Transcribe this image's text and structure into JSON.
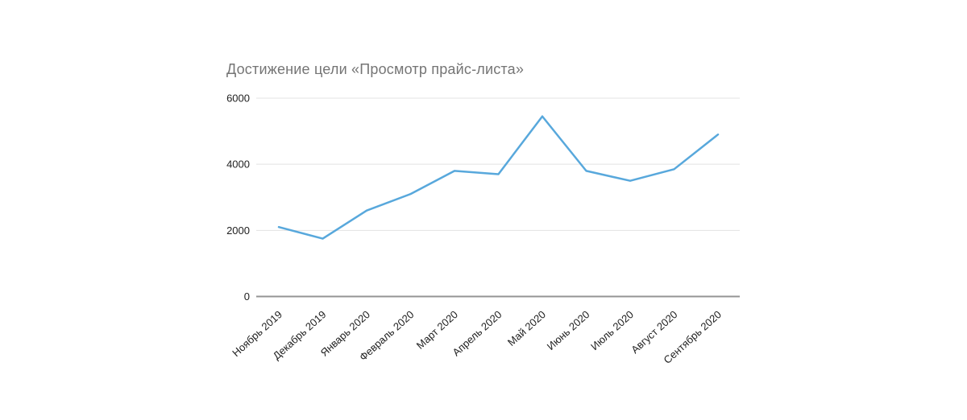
{
  "chart_data": {
    "type": "line",
    "title": "Достижение цели «Просмотр прайс-листа»",
    "categories": [
      "Ноябрь 2019",
      "Декабрь 2019",
      "Январь 2020",
      "Февраль 2020",
      "Март 2020",
      "Апрель 2020",
      "Май 2020",
      "Июнь 2020",
      "Июль 2020",
      "Август 2020",
      "Сентябрь 2020"
    ],
    "values": [
      2100,
      1750,
      2600,
      3100,
      3800,
      3700,
      5450,
      3800,
      3500,
      3850,
      4900
    ],
    "xlabel": "",
    "ylabel": "",
    "ylim": [
      0,
      6000
    ],
    "y_ticks": [
      0,
      2000,
      4000,
      6000
    ],
    "grid": true,
    "legend": "none",
    "colors": {
      "line": "#58A8DC",
      "grid": "#e3e3e3",
      "axis": "#949494",
      "title": "#757575",
      "tick_label": "#212121",
      "background": "#ffffff"
    }
  }
}
